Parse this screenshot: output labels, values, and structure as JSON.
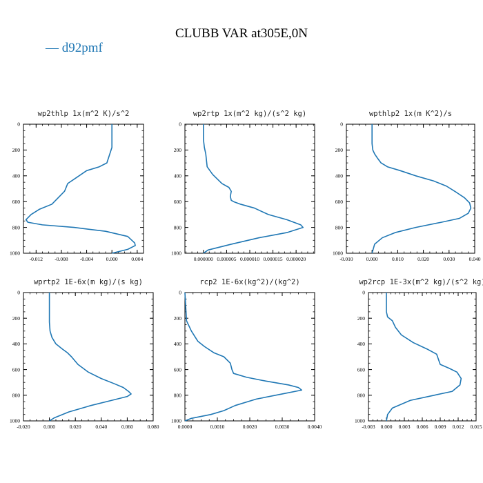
{
  "figure": {
    "title": "CLUBB VAR at305E,0N",
    "legend_label": "— d92pmf",
    "line_color": "#1f77b4"
  },
  "chart_data": [
    {
      "type": "line",
      "title": "wp2thlp   1x(m^2 K)/s^2",
      "xlim": [
        -0.014,
        0.005
      ],
      "ylim": [
        1000,
        0
      ],
      "xticks": [
        -0.012,
        -0.008,
        -0.004,
        0.0,
        0.004
      ],
      "xtick_labels": [
        "-0.012",
        "-0.008",
        "-0.004",
        "0.000",
        "0.004"
      ],
      "yticks": [
        0,
        200,
        400,
        600,
        800,
        1000
      ],
      "ytick_labels": [
        "0",
        "200",
        "400",
        "600",
        "800",
        "1000"
      ],
      "series": [
        {
          "x": [
            0.0,
            0.0,
            -0.0002,
            -0.0008,
            -0.002,
            -0.004,
            -0.0055,
            -0.007,
            -0.0075,
            -0.0095,
            -0.0115,
            -0.0128,
            -0.0136,
            -0.0133,
            -0.011,
            -0.006,
            -0.001,
            0.0025,
            0.0036,
            0.0037,
            0.0025,
            0.0
          ],
          "y": [
            0,
            180,
            210,
            300,
            330,
            360,
            410,
            460,
            520,
            620,
            660,
            700,
            740,
            760,
            780,
            800,
            830,
            870,
            920,
            940,
            970,
            1000
          ]
        }
      ]
    },
    {
      "type": "line",
      "title": "wp2rtp   1x(m^2 kg)/(s^2 kg)",
      "xlim": [
        -4e-06,
        2.4e-05
      ],
      "ylim": [
        1000,
        0
      ],
      "xticks": [
        0.0,
        5e-06,
        1e-05,
        1.5e-05,
        2e-05
      ],
      "xtick_labels": [
        "0.000000",
        "0.000005",
        "0.000010",
        "0.000015",
        "0.000020"
      ],
      "yticks": [
        0,
        200,
        400,
        600,
        800,
        1000
      ],
      "ytick_labels": [
        "0",
        "200",
        "400",
        "600",
        "800",
        "1000"
      ],
      "series": [
        {
          "x": [
            0.0,
            0.0,
            2e-07,
            5e-07,
            8e-07,
            2e-06,
            4e-06,
            5.5e-06,
            6e-06,
            5.8e-06,
            6e-06,
            6.5e-06,
            8e-06,
            1.1e-05,
            1.4e-05,
            1.8e-05,
            2.1e-05,
            2.15e-05,
            1.8e-05,
            1.2e-05,
            6e-06,
            1e-06,
            0.0
          ],
          "y": [
            0,
            120,
            180,
            230,
            330,
            390,
            460,
            490,
            520,
            560,
            590,
            600,
            620,
            650,
            700,
            740,
            780,
            800,
            840,
            880,
            930,
            975,
            1000
          ]
        }
      ]
    },
    {
      "type": "line",
      "title": "wpthlp2   1x(m K^2)/s",
      "xlim": [
        -0.01,
        0.04
      ],
      "ylim": [
        1000,
        0
      ],
      "xticks": [
        -0.01,
        0.0,
        0.01,
        0.02,
        0.03,
        0.04
      ],
      "xtick_labels": [
        "-0.010",
        "0.000",
        "0.010",
        "0.020",
        "0.030",
        "0.040"
      ],
      "yticks": [
        0,
        200,
        400,
        600,
        800,
        1000
      ],
      "ytick_labels": [
        "0",
        "200",
        "400",
        "600",
        "800",
        "1000"
      ],
      "series": [
        {
          "x": [
            0.0,
            0.0,
            0.0003,
            0.001,
            0.002,
            0.0035,
            0.006,
            0.011,
            0.017,
            0.024,
            0.029,
            0.033,
            0.036,
            0.038,
            0.0385,
            0.0375,
            0.034,
            0.027,
            0.017,
            0.009,
            0.004,
            0.001,
            0.0
          ],
          "y": [
            0,
            150,
            200,
            230,
            260,
            300,
            330,
            360,
            400,
            440,
            480,
            530,
            570,
            610,
            650,
            690,
            730,
            760,
            800,
            840,
            880,
            930,
            1000
          ]
        }
      ]
    },
    {
      "type": "line",
      "title": "wprtp2   1E-6x(m kg)/(s kg)",
      "xlim": [
        -0.02,
        0.08
      ],
      "ylim": [
        1000,
        0
      ],
      "xticks": [
        -0.02,
        0.0,
        0.02,
        0.04,
        0.06,
        0.08
      ],
      "xtick_labels": [
        "-0.020",
        "0.000",
        "0.020",
        "0.040",
        "0.060",
        "0.080"
      ],
      "yticks": [
        0,
        200,
        400,
        600,
        800,
        1000
      ],
      "ytick_labels": [
        "0",
        "200",
        "400",
        "600",
        "800",
        "1000"
      ],
      "series": [
        {
          "x": [
            0.0,
            0.0,
            0.0005,
            0.002,
            0.005,
            0.01,
            0.014,
            0.017,
            0.022,
            0.03,
            0.04,
            0.05,
            0.057,
            0.061,
            0.063,
            0.06,
            0.048,
            0.032,
            0.015,
            0.004,
            0.0
          ],
          "y": [
            0,
            230,
            300,
            350,
            400,
            440,
            470,
            500,
            560,
            620,
            670,
            710,
            740,
            770,
            790,
            810,
            840,
            880,
            930,
            975,
            1000
          ]
        }
      ]
    },
    {
      "type": "line",
      "title": "rcp2   1E-6x(kg^2)/(kg^2)",
      "xlim": [
        0.0,
        0.004
      ],
      "ylim": [
        1000,
        0
      ],
      "xticks": [
        0.0,
        0.001,
        0.002,
        0.003,
        0.004
      ],
      "xtick_labels": [
        "0.0000",
        "0.0010",
        "0.0020",
        "0.0030",
        "0.0040"
      ],
      "yticks": [
        0,
        200,
        400,
        600,
        800,
        1000
      ],
      "ytick_labels": [
        "0",
        "200",
        "400",
        "600",
        "800",
        "1000"
      ],
      "series": [
        {
          "x": [
            0.0,
            5e-05,
            0.0002,
            0.0004,
            0.0006,
            0.0009,
            0.0012,
            0.0014,
            0.00145,
            0.0015,
            0.0019,
            0.0025,
            0.0032,
            0.0035,
            0.0036,
            0.003,
            0.0022,
            0.00155,
            0.0012,
            0.0008,
            0.0002,
            0.0
          ],
          "y": [
            0,
            220,
            300,
            380,
            420,
            470,
            500,
            550,
            600,
            630,
            660,
            690,
            720,
            740,
            760,
            790,
            830,
            880,
            920,
            950,
            980,
            1000
          ]
        }
      ]
    },
    {
      "type": "line",
      "title": "wp2rcp   1E-3x(m^2 kg)/(s^2 kg)",
      "xlim": [
        -0.003,
        0.015
      ],
      "ylim": [
        1000,
        0
      ],
      "xticks": [
        -0.003,
        0.0,
        0.003,
        0.006,
        0.009,
        0.012,
        0.015
      ],
      "xtick_labels": [
        "-0.003",
        "0.000",
        "0.003",
        "0.006",
        "0.009",
        "0.012",
        "0.015"
      ],
      "yticks": [
        0,
        200,
        400,
        600,
        800,
        1000
      ],
      "ytick_labels": [
        "0",
        "200",
        "400",
        "600",
        "800",
        "1000"
      ],
      "series": [
        {
          "x": [
            0.0,
            0.0,
            0.0002,
            0.001,
            0.0015,
            0.0025,
            0.0045,
            0.0068,
            0.0084,
            0.0087,
            0.009,
            0.0105,
            0.0118,
            0.0125,
            0.0123,
            0.011,
            0.008,
            0.004,
            0.001,
            0.0002,
            0.0
          ],
          "y": [
            0,
            150,
            190,
            220,
            270,
            330,
            390,
            440,
            480,
            520,
            560,
            590,
            620,
            670,
            720,
            770,
            800,
            840,
            900,
            950,
            1000
          ]
        }
      ]
    }
  ]
}
